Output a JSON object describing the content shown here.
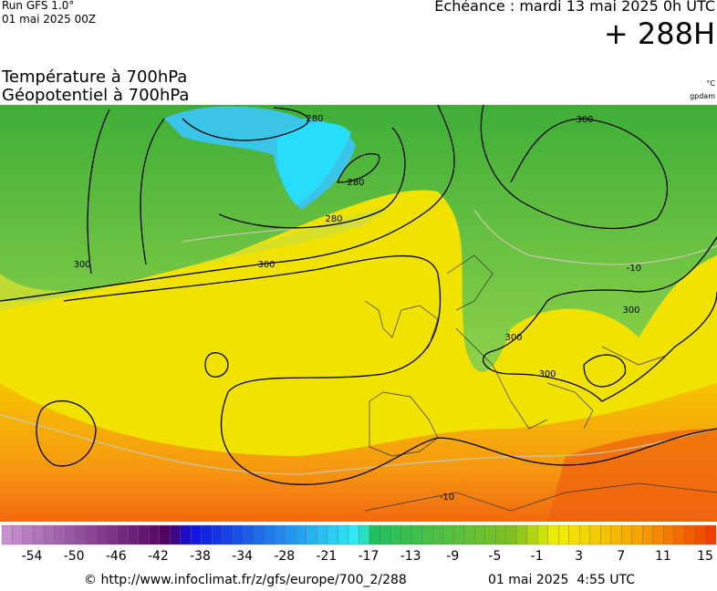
{
  "header": {
    "run": "Run GFS 1.0°",
    "run_date": "01 mai 2025 00Z",
    "echeance": "Echéance : mardi 13 mai 2025 0h UTC",
    "horizon": "+ 288H",
    "title_temperature": "Température à 700hPa",
    "title_geopotential": "Géopotentiel à 700hPa",
    "unit_temperature": "°C",
    "unit_geopotential": "gpdam"
  },
  "map": {
    "contour_labels": [
      "280",
      "280",
      "280",
      "300",
      "300",
      "300",
      "300",
      "300",
      "300",
      "-10",
      "-10"
    ]
  },
  "colorbar": {
    "labels": [
      -54,
      -50,
      -46,
      -42,
      -38,
      -34,
      -28,
      -21,
      -17,
      -13,
      -9,
      -5,
      -1,
      3,
      7,
      11,
      15
    ]
  },
  "footer": {
    "url": "© http://www.infoclimat.fr/z/gfs/europe/700_2/288",
    "generated": "01 mai 2025  4:55 UTC"
  }
}
